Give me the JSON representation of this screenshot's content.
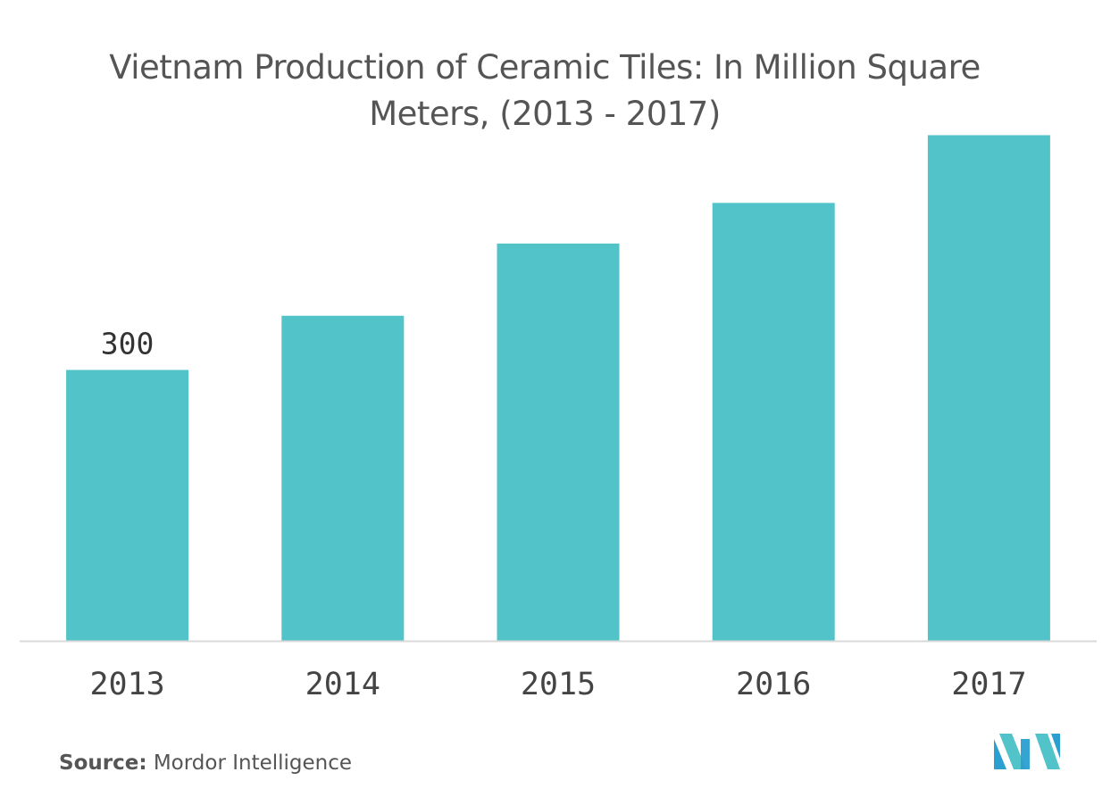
{
  "chart_data": {
    "type": "bar",
    "title": "Vietnam Production of Ceramic Tiles: In Million Square Meters, (2013 - 2017)",
    "categories": [
      "2013",
      "2014",
      "2015",
      "2016",
      "2017"
    ],
    "values": [
      300,
      360,
      440,
      485,
      560
    ],
    "data_labels": [
      "300",
      "",
      "",
      "",
      ""
    ],
    "xlabel": "",
    "ylabel": "",
    "ylim": [
      0,
      600
    ],
    "grid": false,
    "legend": "none",
    "bar_color": "#52c3c9",
    "axis_color": "#d9d9d9"
  },
  "source": {
    "label": "Source:",
    "text": " Mordor Intelligence"
  },
  "logo": {
    "name": "mordor-intelligence-logo",
    "colors": [
      "#2a9fd0",
      "#52c3c9"
    ]
  }
}
